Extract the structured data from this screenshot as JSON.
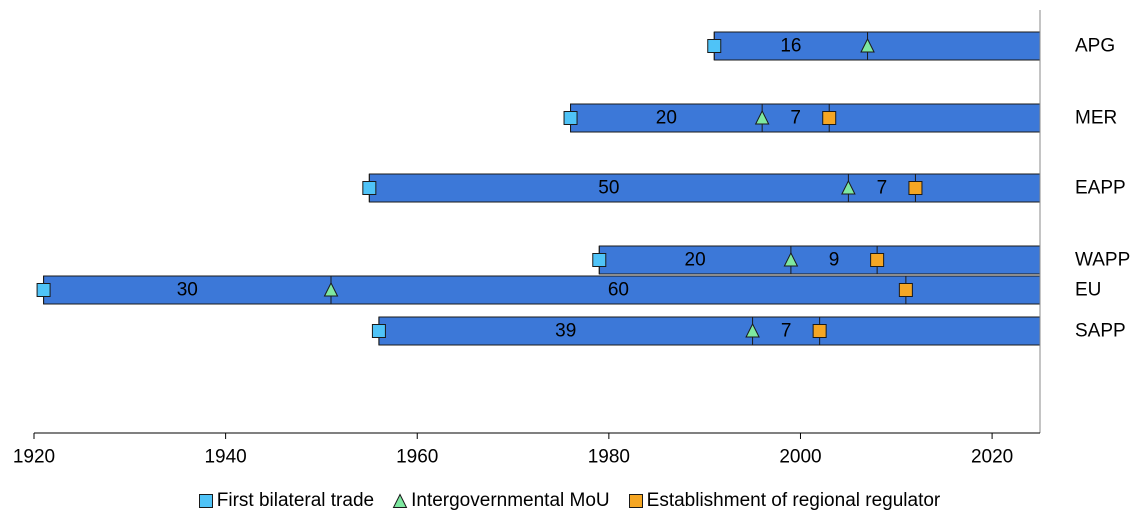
{
  "colors": {
    "bar": "#3C78D8",
    "first_trade": "#4FC3F7",
    "mou": "#7EE8A0",
    "regulator": "#F5A623"
  },
  "chart_data": {
    "type": "bar",
    "orientation": "horizontal",
    "subtype": "timeline",
    "xlim": [
      1920,
      2025
    ],
    "xticks": [
      1920,
      1940,
      1960,
      1980,
      2000,
      2020
    ],
    "grid": false,
    "legend_position": "bottom",
    "categories": [
      "EU",
      "SAPP",
      "WAPP",
      "EAPP",
      "MER",
      "APG"
    ],
    "bars": [
      {
        "name": "EU",
        "first_trade": 1921,
        "mou": 1951,
        "regulator": 2011,
        "gap_labels": [
          "30",
          "60"
        ]
      },
      {
        "name": "SAPP",
        "first_trade": 1956,
        "mou": 1995,
        "regulator": 2002,
        "gap_labels": [
          "39",
          "7"
        ]
      },
      {
        "name": "WAPP",
        "first_trade": 1979,
        "mou": 1999,
        "regulator": 2008,
        "gap_labels": [
          "20",
          "9"
        ]
      },
      {
        "name": "EAPP",
        "first_trade": 1955,
        "mou": 2005,
        "regulator": 2012,
        "gap_labels": [
          "50",
          "7"
        ]
      },
      {
        "name": "MER",
        "first_trade": 1976,
        "mou": 1996,
        "regulator": 2003,
        "gap_labels": [
          "20",
          "7"
        ]
      },
      {
        "name": "APG",
        "first_trade": 1991,
        "mou": 2007,
        "regulator": null,
        "gap_labels": [
          "16"
        ]
      }
    ],
    "legend": [
      {
        "key": "first_trade",
        "label": "First bilateral trade",
        "marker": "square"
      },
      {
        "key": "mou",
        "label": "Intergovernmental MoU",
        "marker": "triangle"
      },
      {
        "key": "regulator",
        "label": "Establishment of regional regulator",
        "marker": "square"
      }
    ]
  }
}
